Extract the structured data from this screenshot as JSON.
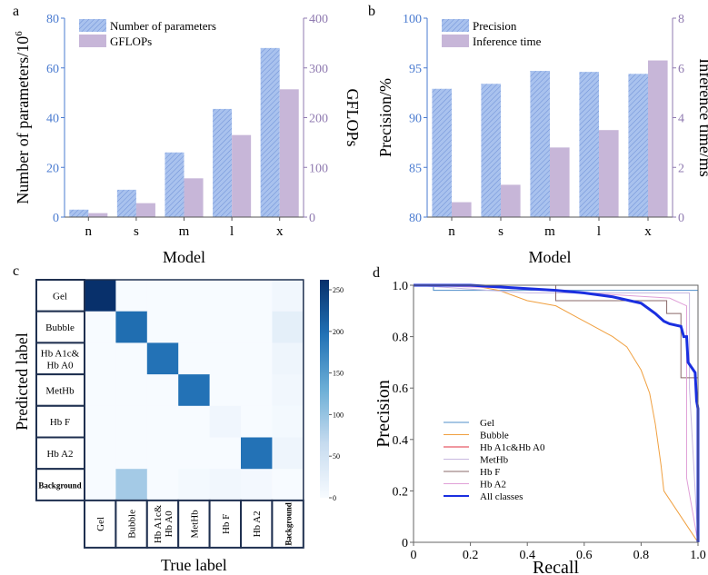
{
  "colors": {
    "bar_primary": "#a9c2ee",
    "bar_hatch": "#6d8fd6",
    "bar_secondary": "#c7b6d8",
    "left_axis": "#4a7bd0",
    "right_axis": "#8f7ab0",
    "heat_max": "#08306b",
    "heat_min": "#f7fbff"
  },
  "chart_data": [
    {
      "panel": "a",
      "type": "bar",
      "categories": [
        "n",
        "s",
        "m",
        "l",
        "x"
      ],
      "xlabel": "Model",
      "ylabel": "Number of parameters/10",
      "ylabel_sup": "6",
      "y2label": "GFLOPs",
      "ylim": [
        0,
        80
      ],
      "y2lim": [
        0,
        400
      ],
      "yticks": [
        0,
        20,
        40,
        60,
        80
      ],
      "y2ticks": [
        0,
        100,
        200,
        300,
        400
      ],
      "legend": "top-left",
      "series": [
        {
          "name": "Number of parameters",
          "axis": "left",
          "values": [
            3,
            11,
            26,
            43.5,
            68
          ]
        },
        {
          "name": "GFLOPs",
          "axis": "right",
          "values": [
            8,
            28,
            78,
            165,
            257
          ]
        }
      ]
    },
    {
      "panel": "b",
      "type": "bar",
      "categories": [
        "n",
        "s",
        "m",
        "l",
        "x"
      ],
      "xlabel": "Model",
      "ylabel": "Precision/%",
      "y2label": "Inference time/ms",
      "ylim": [
        80,
        100
      ],
      "y2lim": [
        0,
        8
      ],
      "yticks": [
        80,
        85,
        90,
        95,
        100
      ],
      "y2ticks": [
        0,
        2,
        4,
        6,
        8
      ],
      "legend": "top-left",
      "series": [
        {
          "name": "Precision",
          "axis": "left",
          "values": [
            92.9,
            93.4,
            94.7,
            94.6,
            94.4
          ]
        },
        {
          "name": "Inference time",
          "axis": "right",
          "values": [
            0.6,
            1.3,
            2.8,
            3.5,
            6.3
          ]
        }
      ]
    },
    {
      "panel": "c",
      "type": "heatmap",
      "xlabel": "True label",
      "ylabel": "Predicted label",
      "row_labels": [
        "Gel",
        "Bubble",
        "Hb A1c& Hb A0",
        "MetHb",
        "Hb F",
        "Hb A2",
        "Background"
      ],
      "col_labels": [
        "Gel",
        "Bubble",
        "Hb A1c& Hb A0",
        "MetHb",
        "Hb F",
        "Hb A2",
        "Background"
      ],
      "colorbar_ticks": [
        0,
        50,
        100,
        150,
        200,
        250
      ],
      "zlim": [
        0,
        262
      ],
      "values": [
        [
          262,
          0,
          0,
          0,
          0,
          0,
          8
        ],
        [
          0,
          200,
          0,
          0,
          0,
          0,
          25
        ],
        [
          0,
          0,
          195,
          0,
          0,
          0,
          12
        ],
        [
          0,
          0,
          0,
          195,
          0,
          0,
          8
        ],
        [
          0,
          0,
          0,
          0,
          10,
          0,
          5
        ],
        [
          0,
          0,
          0,
          0,
          0,
          195,
          12
        ],
        [
          0,
          90,
          0,
          5,
          8,
          6,
          0
        ]
      ]
    },
    {
      "panel": "d",
      "type": "line",
      "xlabel": "Recall",
      "ylabel": "Precision",
      "xlim": [
        0,
        1
      ],
      "ylim": [
        0,
        1
      ],
      "xticks": [
        "0",
        "0.2",
        "0.4",
        "0.6",
        "0.8",
        "1.0"
      ],
      "yticks": [
        "0",
        "0.2",
        "0.4",
        "0.6",
        "0.8",
        "1.0"
      ],
      "legend": "center-left",
      "series": [
        {
          "name": "Gel",
          "color": "#4f8fc9",
          "width": 1,
          "points": [
            [
              0,
              1
            ],
            [
              0.07,
              1
            ],
            [
              0.07,
              0.98
            ],
            [
              1,
              0.98
            ],
            [
              1,
              0
            ]
          ]
        },
        {
          "name": "Bubble",
          "color": "#f0a040",
          "width": 1,
          "points": [
            [
              0,
              1
            ],
            [
              0.2,
              1
            ],
            [
              0.3,
              0.98
            ],
            [
              0.4,
              0.94
            ],
            [
              0.5,
              0.92
            ],
            [
              0.6,
              0.86
            ],
            [
              0.7,
              0.8
            ],
            [
              0.75,
              0.76
            ],
            [
              0.8,
              0.67
            ],
            [
              0.83,
              0.58
            ],
            [
              0.85,
              0.46
            ],
            [
              0.87,
              0.3
            ],
            [
              0.88,
              0.2
            ],
            [
              1,
              0
            ]
          ]
        },
        {
          "name": "Hb A1c&Hb A0",
          "color": "#e03040",
          "width": 1,
          "points": [
            [
              0,
              1
            ],
            [
              1,
              1
            ],
            [
              1,
              0
            ]
          ]
        },
        {
          "name": "MetHb",
          "color": "#c8b8e0",
          "width": 1,
          "points": [
            [
              0,
              1
            ],
            [
              0.4,
              0.97
            ],
            [
              0.97,
              0.97
            ],
            [
              0.97,
              0.6
            ],
            [
              1,
              0
            ]
          ]
        },
        {
          "name": "Hb F",
          "color": "#8a6a6a",
          "width": 1,
          "points": [
            [
              0,
              1
            ],
            [
              0.5,
              1
            ],
            [
              0.5,
              0.94
            ],
            [
              0.89,
              0.94
            ],
            [
              0.89,
              0.89
            ],
            [
              0.94,
              0.89
            ],
            [
              0.94,
              0.64
            ],
            [
              1,
              0.64
            ],
            [
              1,
              0
            ]
          ]
        },
        {
          "name": "Hb A2",
          "color": "#e0a0d8",
          "width": 1,
          "points": [
            [
              0,
              1
            ],
            [
              0.3,
              0.99
            ],
            [
              0.9,
              0.95
            ],
            [
              0.96,
              0.92
            ],
            [
              0.96,
              0.25
            ],
            [
              1,
              0
            ]
          ]
        },
        {
          "name": "All classes",
          "color": "#1a2fe0",
          "width": 3,
          "points": [
            [
              0,
              1
            ],
            [
              0.2,
              1
            ],
            [
              0.5,
              0.98
            ],
            [
              0.6,
              0.97
            ],
            [
              0.7,
              0.955
            ],
            [
              0.8,
              0.93
            ],
            [
              0.85,
              0.89
            ],
            [
              0.88,
              0.86
            ],
            [
              0.9,
              0.85
            ],
            [
              0.94,
              0.84
            ],
            [
              0.95,
              0.8
            ],
            [
              0.96,
              0.8
            ],
            [
              0.965,
              0.7
            ],
            [
              0.99,
              0.66
            ],
            [
              0.995,
              0.55
            ],
            [
              1,
              0.52
            ],
            [
              1,
              0
            ]
          ]
        }
      ]
    }
  ],
  "panel_labels": [
    "a",
    "b",
    "c",
    "d"
  ]
}
